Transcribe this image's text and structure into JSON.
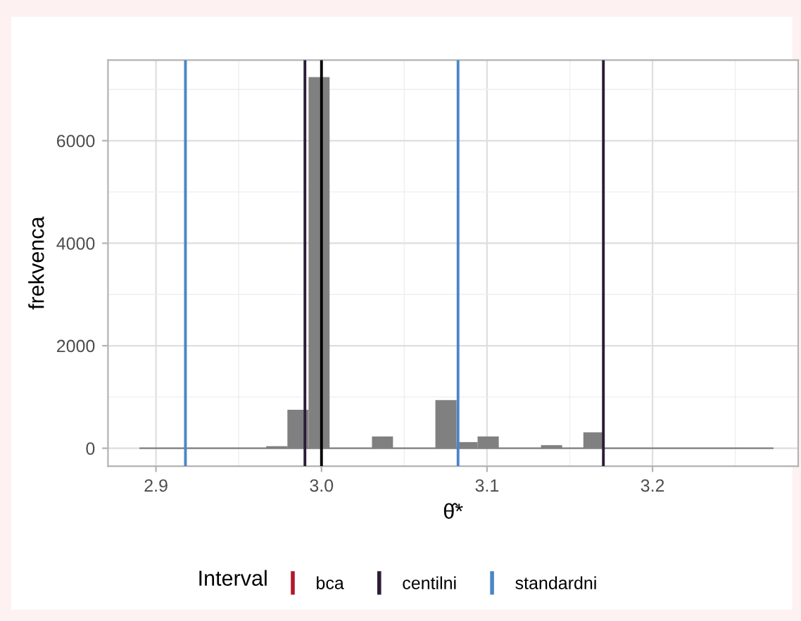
{
  "chart_data": {
    "type": "histogram",
    "xlabel": "θ̂*",
    "ylabel": "frekvenca",
    "legend_title": "Interval",
    "color": "#808080",
    "bins": [
      2.89,
      2.9028,
      2.9155,
      2.9283,
      2.9411,
      2.9539,
      2.9666,
      2.9794,
      2.9922,
      3.0049,
      3.0177,
      3.0305,
      3.0432,
      3.056,
      3.0688,
      3.0816,
      3.0943,
      3.1071,
      3.1199,
      3.1326,
      3.1454,
      3.1582,
      3.1709,
      3.1837,
      3.1965,
      3.2093,
      3.222,
      3.2348,
      3.2476,
      3.2603,
      3.2731
    ],
    "values": [
      0,
      0,
      0,
      0,
      0,
      0,
      40,
      750,
      7240,
      0,
      0,
      230,
      0,
      0,
      940,
      120,
      230,
      0,
      0,
      60,
      0,
      310,
      0,
      0,
      0,
      0,
      0,
      0,
      0,
      0
    ],
    "xlim": [
      2.871,
      3.288
    ],
    "ylim": [
      -349,
      7572
    ],
    "xticks": [
      {
        "value": 2.9,
        "label": "2.9"
      },
      {
        "value": 3.0,
        "label": "3.0"
      },
      {
        "value": 3.1,
        "label": "3.1"
      },
      {
        "value": 3.2,
        "label": "3.2"
      }
    ],
    "yticks": [
      0,
      2000,
      4000,
      6000
    ],
    "ref_lines": [
      {
        "value": null,
        "label": "bca",
        "color": "#b2182b"
      },
      {
        "axis": "x",
        "value": 2.99,
        "label": "centilni",
        "color": "#2d1b3a"
      },
      {
        "axis": "x",
        "value": 3.1703,
        "label": null,
        "color": "#2d1b3a"
      },
      {
        "axis": "x",
        "value": 2.9178,
        "label": "standardni",
        "color": "#4a86c8"
      },
      {
        "axis": "x",
        "value": 3.0825,
        "label": null,
        "color": "#4a86c8"
      },
      {
        "axis": "x",
        "value": 3.0,
        "label": null,
        "color": "#000000"
      }
    ],
    "grid": true,
    "legend": "bottom"
  }
}
